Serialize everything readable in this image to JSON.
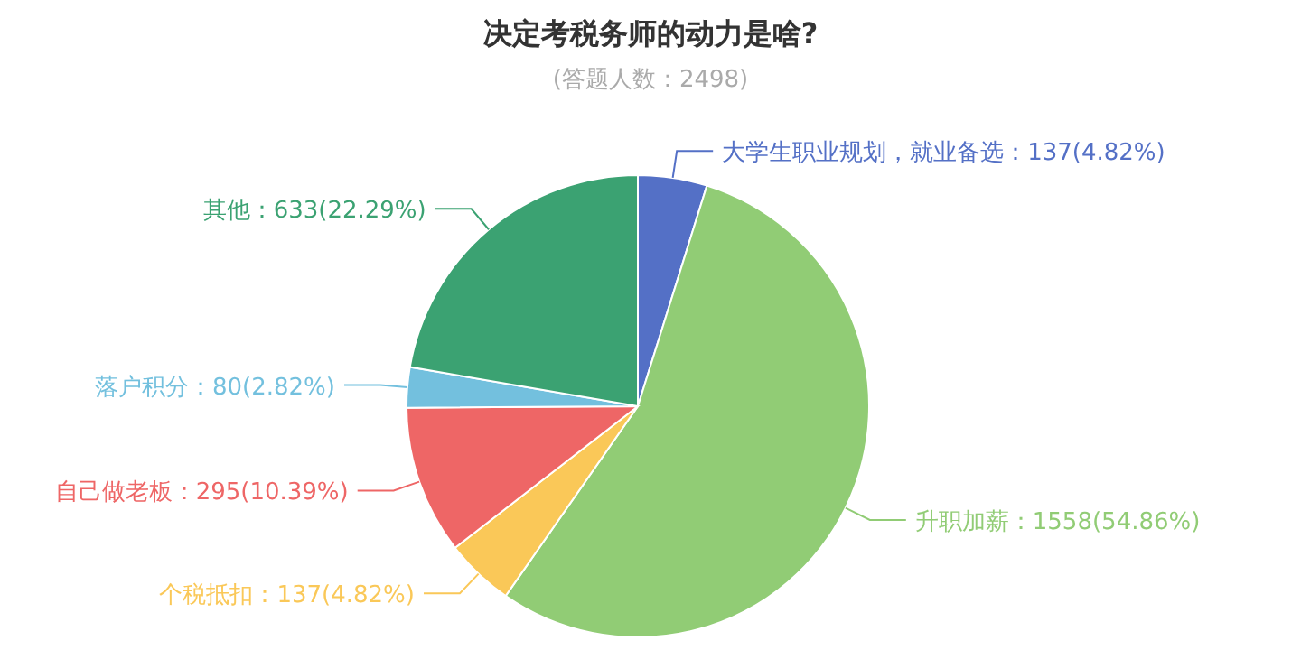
{
  "chart_data": {
    "type": "pie",
    "title": "决定考税务师的动力是啥?",
    "subtitle": "(答题人数：2498)",
    "categories": [
      "大学生职业规划，就业备选",
      "升职加薪",
      "个税抵扣",
      "自己做老板",
      "落户积分",
      "其他"
    ],
    "values": [
      137,
      1558,
      137,
      295,
      80,
      633
    ],
    "value_labels": [
      "137(4.82%)",
      "1558(54.86%)",
      "137(4.82%)",
      "295(10.39%)",
      "80(2.82%)",
      "633(22.29%)"
    ],
    "colors": [
      "#5470c6",
      "#91cc75",
      "#fac858",
      "#ee6666",
      "#73c0de",
      "#3ba272"
    ]
  }
}
